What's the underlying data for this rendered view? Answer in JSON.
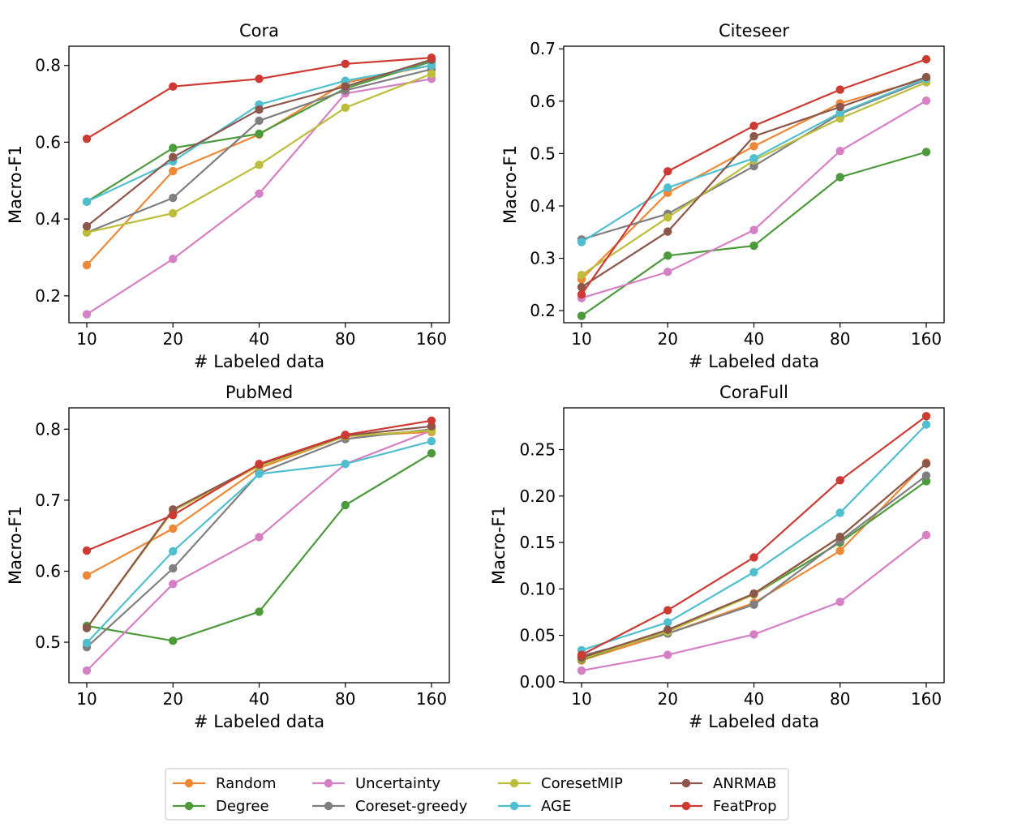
{
  "legend": {
    "items": [
      {
        "name": "Random",
        "color": "#ed8936"
      },
      {
        "name": "Degree",
        "color": "#4c9a3b"
      },
      {
        "name": "Uncertainty",
        "color": "#d57fc4"
      },
      {
        "name": "Coreset-greedy",
        "color": "#7f7f7f"
      },
      {
        "name": "CoresetMIP",
        "color": "#bcbd3a"
      },
      {
        "name": "AGE",
        "color": "#4fbfcf"
      },
      {
        "name": "ANRMAB",
        "color": "#8c564b"
      },
      {
        "name": "FeatProp",
        "color": "#cc3a33"
      }
    ]
  },
  "chart_data": [
    {
      "type": "line",
      "title": "Cora",
      "xlabel": "# Labeled data",
      "ylabel": "Macro-F1",
      "categories": [
        "10",
        "20",
        "40",
        "80",
        "160"
      ],
      "yticks": [
        "0.2",
        "0.4",
        "0.6",
        "0.8"
      ],
      "ylim": [
        0.13,
        0.85
      ],
      "series": [
        {
          "name": "Random",
          "values": [
            0.28,
            0.525,
            0.62,
            0.755,
            0.8
          ]
        },
        {
          "name": "Degree",
          "values": [
            0.445,
            0.585,
            0.622,
            0.74,
            0.81
          ]
        },
        {
          "name": "Uncertainty",
          "values": [
            0.152,
            0.296,
            0.466,
            0.727,
            0.765
          ]
        },
        {
          "name": "Coreset-greedy",
          "values": [
            0.365,
            0.455,
            0.656,
            0.735,
            0.79
          ]
        },
        {
          "name": "CoresetMIP",
          "values": [
            0.365,
            0.415,
            0.541,
            0.69,
            0.778
          ]
        },
        {
          "name": "AGE",
          "values": [
            0.445,
            0.55,
            0.698,
            0.76,
            0.8
          ]
        },
        {
          "name": "ANRMAB",
          "values": [
            0.381,
            0.561,
            0.685,
            0.745,
            0.815
          ]
        },
        {
          "name": "FeatProp",
          "values": [
            0.609,
            0.745,
            0.765,
            0.804,
            0.82
          ]
        }
      ]
    },
    {
      "type": "line",
      "title": "Citeseer",
      "xlabel": "# Labeled data",
      "ylabel": "Macro-F1",
      "categories": [
        "10",
        "20",
        "40",
        "80",
        "160"
      ],
      "yticks": [
        "0.2",
        "0.3",
        "0.4",
        "0.5",
        "0.6",
        "0.7"
      ],
      "ylim": [
        0.177,
        0.705
      ],
      "series": [
        {
          "name": "Random",
          "values": [
            0.26,
            0.425,
            0.514,
            0.596,
            0.643
          ]
        },
        {
          "name": "Degree",
          "values": [
            0.19,
            0.305,
            0.324,
            0.455,
            0.503
          ]
        },
        {
          "name": "Uncertainty",
          "values": [
            0.224,
            0.274,
            0.354,
            0.505,
            0.601
          ]
        },
        {
          "name": "Coreset-greedy",
          "values": [
            0.336,
            0.385,
            0.476,
            0.576,
            0.641
          ]
        },
        {
          "name": "CoresetMIP",
          "values": [
            0.268,
            0.378,
            0.487,
            0.567,
            0.636
          ]
        },
        {
          "name": "AGE",
          "values": [
            0.331,
            0.435,
            0.491,
            0.578,
            0.643
          ]
        },
        {
          "name": "ANRMAB",
          "values": [
            0.245,
            0.351,
            0.533,
            0.589,
            0.646
          ]
        },
        {
          "name": "FeatProp",
          "values": [
            0.231,
            0.466,
            0.553,
            0.622,
            0.68
          ]
        }
      ]
    },
    {
      "type": "line",
      "title": "PubMed",
      "xlabel": "# Labeled data",
      "ylabel": "Macro-F1",
      "categories": [
        "10",
        "20",
        "40",
        "80",
        "160"
      ],
      "yticks": [
        "0.5",
        "0.6",
        "0.7",
        "0.8"
      ],
      "ylim": [
        0.443,
        0.83
      ],
      "series": [
        {
          "name": "Random",
          "values": [
            0.594,
            0.66,
            0.745,
            0.79,
            0.796
          ]
        },
        {
          "name": "Degree",
          "values": [
            0.523,
            0.502,
            0.543,
            0.693,
            0.766
          ]
        },
        {
          "name": "Uncertainty",
          "values": [
            0.46,
            0.582,
            0.648,
            0.751,
            0.798
          ]
        },
        {
          "name": "Coreset-greedy",
          "values": [
            0.493,
            0.604,
            0.738,
            0.786,
            0.8
          ]
        },
        {
          "name": "CoresetMIP",
          "values": [
            0.52,
            0.685,
            0.748,
            0.79,
            0.798
          ]
        },
        {
          "name": "AGE",
          "values": [
            0.499,
            0.628,
            0.737,
            0.751,
            0.783
          ]
        },
        {
          "name": "ANRMAB",
          "values": [
            0.52,
            0.687,
            0.75,
            0.791,
            0.804
          ]
        },
        {
          "name": "FeatProp",
          "values": [
            0.629,
            0.679,
            0.751,
            0.792,
            0.812
          ]
        }
      ]
    },
    {
      "type": "line",
      "title": "CoraFull",
      "xlabel": "# Labeled data",
      "ylabel": "Macro-F1",
      "categories": [
        "10",
        "20",
        "40",
        "80",
        "160"
      ],
      "yticks": [
        "0.00",
        "0.05",
        "0.10",
        "0.15",
        "0.20",
        "0.25"
      ],
      "ylim": [
        -0.001,
        0.295
      ],
      "series": [
        {
          "name": "Random",
          "values": [
            0.023,
            0.052,
            0.085,
            0.141,
            0.236
          ]
        },
        {
          "name": "Degree",
          "values": [
            0.024,
            0.055,
            0.094,
            0.15,
            0.216
          ]
        },
        {
          "name": "Uncertainty",
          "values": [
            0.012,
            0.029,
            0.051,
            0.086,
            0.158
          ]
        },
        {
          "name": "Coreset-greedy",
          "values": [
            0.028,
            0.052,
            0.083,
            0.152,
            0.222
          ]
        },
        {
          "name": "CoresetMIP",
          "values": [
            0.025,
            0.054,
            0.094,
            0.156,
            0.235
          ]
        },
        {
          "name": "AGE",
          "values": [
            0.034,
            0.064,
            0.118,
            0.182,
            0.277
          ]
        },
        {
          "name": "ANRMAB",
          "values": [
            0.026,
            0.056,
            0.095,
            0.156,
            0.235
          ]
        },
        {
          "name": "FeatProp",
          "values": [
            0.029,
            0.077,
            0.134,
            0.217,
            0.286
          ]
        }
      ]
    }
  ]
}
